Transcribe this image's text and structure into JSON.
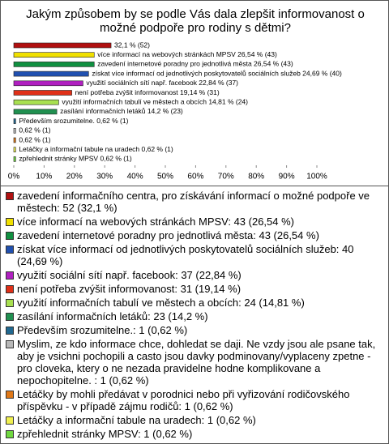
{
  "chart_data": {
    "type": "bar",
    "orientation": "horizontal",
    "title": "Jakým způsobem by se podle Vás dala zlepšit informovanost o možné podpoře pro rodiny s dětmi?",
    "categories": [
      "zavedení informačního centra, pro získávání informací o možné podpoře ve městech: 52 (32,1 %)",
      "více informací na webových stránkách MPSV: 43 (26,54 %)",
      "zavedení internetové poradny pro jednotlivá města: 43 (26,54 %)",
      "získat více informací od jednotlivých poskytovatelů sociálních služeb: 40 (24,69 %)",
      "využití sociální sítí např. facebook: 37 (22,84 %)",
      "není potřeba zvýšit informovanost: 31 (19,14 %)",
      "využití informačních tabulí ve městech a obcích: 24 (14,81 %)",
      "zasílání informačních letáků: 23 (14,2 %)",
      "Především srozumitelne.: 1 (0,62 %)",
      "Myslim, ze kdo informace chce, dohledat se daji. Ne vzdy jsou ale psane tak, aby je vsichni pochopili a casto jsou davky podminovany/vyplaceny zpetne - pro cloveka, ktery o ne nezada pravidelne hodne komplikovane a nepochopitelne. : 1 (0,62 %)",
      "Letáčky by mohli předávat v porodnici nebo při vyřizování rodičovského příspěvku - v případě zájmu rodičů: 1 (0,62 %)",
      "Letáčky a informační tabule na uradech: 1 (0,62 %)",
      "zpřehlednit stránky MPSV: 1 (0,62 %)"
    ],
    "values": [
      32.1,
      26.54,
      26.54,
      24.69,
      22.84,
      19.14,
      14.81,
      14.2,
      0.62,
      0.62,
      0.62,
      0.62,
      0.62
    ],
    "value_labels": [
      "32,1 % (52)",
      "více informací na webových stránkách MPSV 26,54 % (43)",
      "zavedení internetové poradny pro jednotlivá města 26,54 % (43)",
      "získat více informací od jednotlivých poskytovatelů sociálních služeb 24,69 % (40)",
      "využití sociálních sítí např. facebook 22,84 % (37)",
      "není potřeba zvýšit informovanost 19,14 % (31)",
      "využití informačních tabulí ve městech a obcích 14,81 % (24)",
      "zasílání informačních letáků 14,2 % (23)",
      "Především srozumitelne. 0,62 % (1)",
      "0,62 % (1)",
      "0,62 % (1)",
      "Letáčky a informační tabule na uradech 0,62 % (1)",
      "zpřehlednit stránky MPSV 0,62 % (1)"
    ],
    "colors": [
      "#b01010",
      "#f0e000",
      "#109040",
      "#2050b0",
      "#b020c0",
      "#e03018",
      "#a8e050",
      "#209050",
      "#206890",
      "#b8b8b8",
      "#e07818",
      "#f0f050",
      "#70d840"
    ],
    "xlim": [
      0,
      100
    ],
    "xticks": [
      {
        "value": 0,
        "label": "0%"
      },
      {
        "value": 10,
        "label": "10%"
      },
      {
        "value": 20,
        "label": "20%"
      },
      {
        "value": 30,
        "label": "30%"
      },
      {
        "value": 40,
        "label": "40%"
      },
      {
        "value": 50,
        "label": "50%"
      },
      {
        "value": 60,
        "label": "60%"
      },
      {
        "value": 70,
        "label": "70%"
      },
      {
        "value": 80,
        "label": "80%"
      },
      {
        "value": 90,
        "label": "90%"
      },
      {
        "value": 100,
        "label": "100%"
      }
    ]
  }
}
